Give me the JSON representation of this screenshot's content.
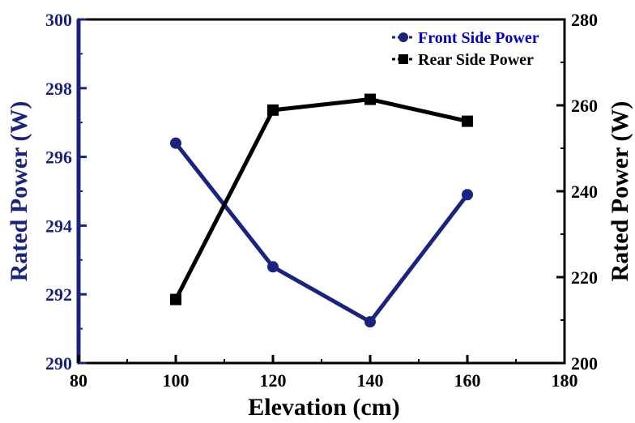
{
  "chart_data": {
    "type": "line",
    "title": "",
    "xlabel": "Elevation (cm)",
    "ylabel_left": "Rated Power (W)",
    "ylabel_right": "Rated Power (W)",
    "xlim": [
      80,
      180
    ],
    "ylim_left": [
      290,
      300
    ],
    "ylim_right": [
      200,
      280
    ],
    "x_ticks": [
      80,
      100,
      120,
      140,
      160,
      180
    ],
    "y_ticks_left": [
      290,
      292,
      294,
      296,
      298,
      300
    ],
    "y_ticks_right": [
      200,
      220,
      240,
      260,
      280
    ],
    "grid": false,
    "legend_position": "top-right",
    "x": [
      100,
      120,
      140,
      160
    ],
    "series": [
      {
        "name": "Front Side Power",
        "axis": "left",
        "marker": "circle",
        "color": "#1a237e",
        "label_color": "#0000cc",
        "values": [
          296.4,
          292.8,
          291.2,
          294.9
        ]
      },
      {
        "name": "Rear Side Power",
        "axis": "right",
        "marker": "square",
        "color": "#000000",
        "label_color": "#000000",
        "values": [
          214.8,
          258.9,
          261.4,
          256.3
        ]
      }
    ],
    "colors": {
      "left_axis": "#1a237e",
      "left_label": "#1a237e",
      "right_axis": "#000000"
    }
  }
}
